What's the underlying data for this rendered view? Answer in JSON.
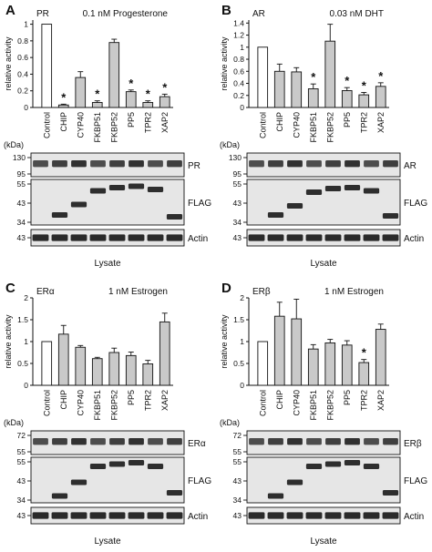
{
  "colors": {
    "control_bar": "#ffffff",
    "treated_bar": "#c9c9c9",
    "stroke": "#111111",
    "blot_bg": "#e6e6e6",
    "band": "#1a1a1a"
  },
  "chart_data": [
    {
      "type": "bar",
      "panel_letter": "A",
      "receptor": "PR",
      "treatment": "0.1 nM Progesterone",
      "ylabel": "relative activity",
      "ylim": [
        0,
        1.05
      ],
      "yticks": [
        "0",
        "0.2",
        "0.4",
        "0.6",
        "0.8",
        "1"
      ],
      "categories": [
        "Control",
        "CHIP",
        "CYP40",
        "FKBP51",
        "FKBP52",
        "PP5",
        "TPR2",
        "XAP2"
      ],
      "values": [
        1.0,
        0.03,
        0.36,
        0.06,
        0.78,
        0.19,
        0.06,
        0.13
      ],
      "errors": [
        0,
        0.01,
        0.07,
        0.02,
        0.04,
        0.02,
        0.02,
        0.03
      ],
      "significant": [
        false,
        true,
        false,
        true,
        false,
        true,
        true,
        true
      ],
      "star": "*",
      "blots": [
        {
          "label": "PR",
          "markers": [
            "130",
            "95"
          ]
        },
        {
          "label": "FLAG",
          "markers": [
            "55",
            "43",
            "34"
          ]
        },
        {
          "label": "Actin",
          "markers": [
            "43"
          ]
        }
      ],
      "kda_label": "(kDa)",
      "lysate_label": "Lysate"
    },
    {
      "type": "bar",
      "panel_letter": "B",
      "receptor": "AR",
      "treatment": "0.03 nM DHT",
      "ylabel": "relative activity",
      "ylim": [
        0,
        1.45
      ],
      "yticks": [
        "0",
        "0.2",
        "0.4",
        "0.6",
        "0.8",
        "1",
        "1.2",
        "1.4"
      ],
      "categories": [
        "Control",
        "CHIP",
        "CYP40",
        "FKBP51",
        "FKBP52",
        "PP5",
        "TPR2",
        "XAP2"
      ],
      "values": [
        1.0,
        0.6,
        0.59,
        0.31,
        1.1,
        0.28,
        0.21,
        0.35
      ],
      "errors": [
        0,
        0.12,
        0.07,
        0.08,
        0.28,
        0.05,
        0.04,
        0.06
      ],
      "significant": [
        false,
        false,
        false,
        true,
        false,
        true,
        true,
        true
      ],
      "star": "*",
      "blots": [
        {
          "label": "AR",
          "markers": [
            "130",
            "95"
          ]
        },
        {
          "label": "FLAG",
          "markers": [
            "55",
            "43",
            "34"
          ]
        },
        {
          "label": "Actin",
          "markers": [
            "43"
          ]
        }
      ],
      "kda_label": "(kDa)",
      "lysate_label": "Lysate"
    },
    {
      "type": "bar",
      "panel_letter": "C",
      "receptor": "ERα",
      "treatment": "1 nM Estrogen",
      "ylabel": "relative activity",
      "ylim": [
        0,
        2.0
      ],
      "yticks": [
        "0",
        "0.5",
        "1",
        "1.5",
        "2"
      ],
      "categories": [
        "Control",
        "CHIP",
        "CYP40",
        "FKBP51",
        "FKBP52",
        "PP5",
        "TPR2",
        "XAP2"
      ],
      "values": [
        1.0,
        1.17,
        0.87,
        0.61,
        0.75,
        0.68,
        0.49,
        1.45
      ],
      "errors": [
        0,
        0.2,
        0.04,
        0.03,
        0.1,
        0.08,
        0.08,
        0.2
      ],
      "significant": [
        false,
        false,
        false,
        false,
        false,
        false,
        false,
        false
      ],
      "star": "*",
      "blots": [
        {
          "label": "ERα",
          "markers": [
            "72",
            "55"
          ]
        },
        {
          "label": "FLAG",
          "markers": [
            "55",
            "43",
            "34"
          ]
        },
        {
          "label": "Actin",
          "markers": [
            "43"
          ]
        }
      ],
      "kda_label": "(kDa)",
      "lysate_label": "Lysate"
    },
    {
      "type": "bar",
      "panel_letter": "D",
      "receptor": "ERβ",
      "treatment": "1 nM Estrogen",
      "ylabel": "relative activity",
      "ylim": [
        0,
        2.0
      ],
      "yticks": [
        "0",
        "0.5",
        "1",
        "1.5",
        "2"
      ],
      "categories": [
        "Control",
        "CHIP",
        "CYP40",
        "FKBP51",
        "FKBP52",
        "PP5",
        "TPR2",
        "XAP2"
      ],
      "values": [
        1.0,
        1.58,
        1.52,
        0.83,
        0.97,
        0.92,
        0.52,
        1.28
      ],
      "errors": [
        0,
        0.32,
        0.45,
        0.1,
        0.08,
        0.1,
        0.07,
        0.12
      ],
      "significant": [
        false,
        false,
        false,
        false,
        false,
        false,
        true,
        false
      ],
      "star": "*",
      "blots": [
        {
          "label": "ERβ",
          "markers": [
            "72",
            "55"
          ]
        },
        {
          "label": "FLAG",
          "markers": [
            "55",
            "43",
            "34"
          ]
        },
        {
          "label": "Actin",
          "markers": [
            "43"
          ]
        }
      ],
      "kda_label": "(kDa)",
      "lysate_label": "Lysate"
    }
  ]
}
